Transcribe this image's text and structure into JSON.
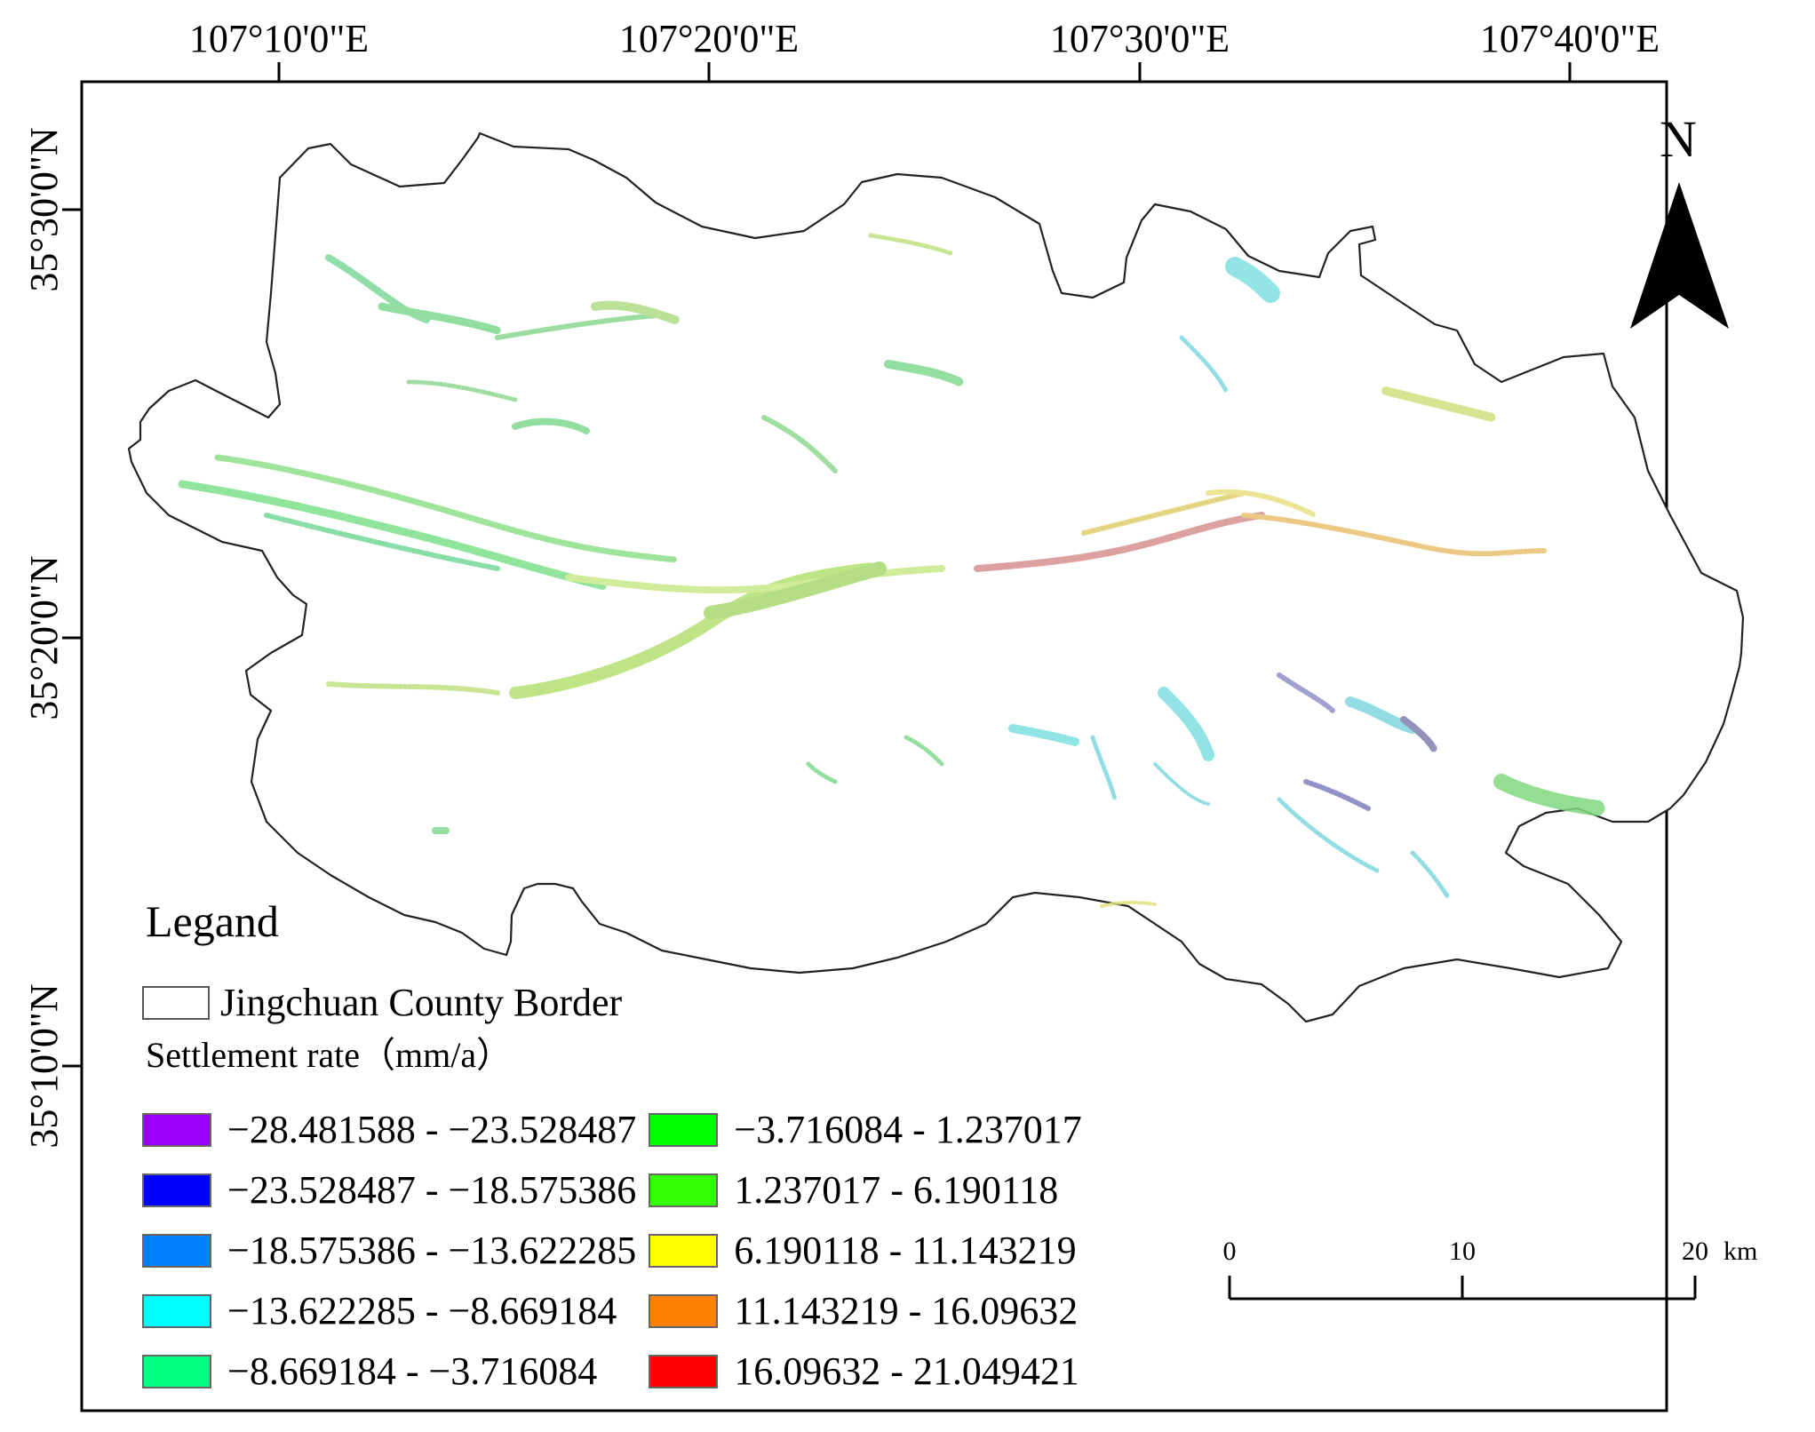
{
  "map": {
    "longitude_labels": [
      "107°10'0\"E",
      "107°20'0\"E",
      "107°30'0\"E",
      "107°40'0\"E"
    ],
    "latitude_labels": [
      "35°30'0\"N",
      "35°20'0\"N",
      "35°10'0\"N"
    ],
    "north_arrow_label": "N"
  },
  "legend": {
    "title": "Legand",
    "border_label": "Jingchuan County Border",
    "rate_title": "Settlement rate（mm/a）",
    "classes": [
      {
        "range": "−28.481588 - −23.528487",
        "color": "#9b00ff"
      },
      {
        "range": "−23.528487 - −18.575386",
        "color": "#0000ff"
      },
      {
        "range": "−18.575386 - −13.622285",
        "color": "#0080ff"
      },
      {
        "range": "−13.622285 - −8.669184",
        "color": "#00ffff"
      },
      {
        "range": "−8.669184 - −3.716084",
        "color": "#00ff80"
      },
      {
        "range": "−3.716084 - 1.237017",
        "color": "#00ff00"
      },
      {
        "range": "1.237017 - 6.190118",
        "color": "#33ff00"
      },
      {
        "range": "6.190118 - 11.143219",
        "color": "#ffff00"
      },
      {
        "range": "11.143219 - 16.09632",
        "color": "#ff8000"
      },
      {
        "range": "16.09632 - 21.049421",
        "color": "#ff0000"
      }
    ]
  },
  "scale_bar": {
    "ticks": [
      "0",
      "10",
      "20"
    ],
    "unit": "km"
  }
}
